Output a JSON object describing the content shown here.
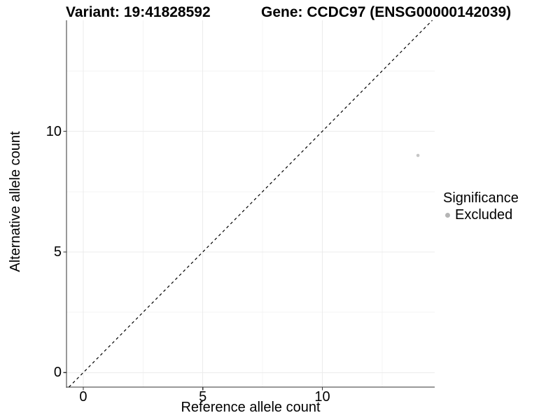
{
  "figure": {
    "title_left": "Variant: 19:41828592",
    "title_right": "Gene: CCDC97 (ENSG00000142039)"
  },
  "legend": {
    "title": "Significance",
    "items": [
      {
        "label": "Excluded",
        "color": "#b5b5b5"
      }
    ]
  },
  "chart_data": {
    "type": "scatter",
    "title": "Variant: 19:41828592 / Gene: CCDC97 (ENSG00000142039)",
    "xlabel": "Reference allele count",
    "ylabel": "Alternative allele count",
    "xlim": [
      -0.7,
      14.7
    ],
    "ylim": [
      -0.6,
      14.6
    ],
    "x_major_ticks": [
      0,
      5,
      10
    ],
    "y_major_ticks": [
      0,
      5,
      10
    ],
    "x_minor_ticks": [
      2.5,
      7.5,
      12.5
    ],
    "y_minor_ticks": [
      2.5,
      7.5,
      12.5
    ],
    "grid": true,
    "legend_position": "right",
    "series": [
      {
        "name": "Excluded",
        "color": "#c6c6c6",
        "marker": "circle",
        "points": [
          {
            "x": 14,
            "y": 9
          }
        ]
      }
    ],
    "reference_line": {
      "kind": "identity",
      "equation": "y = x",
      "style": "dashed",
      "color": "#000000"
    },
    "style": {
      "axis_color": "#333333",
      "grid_major_color": "#ebebeb",
      "grid_minor_color": "#f4f4f4",
      "background": "#ffffff"
    }
  }
}
